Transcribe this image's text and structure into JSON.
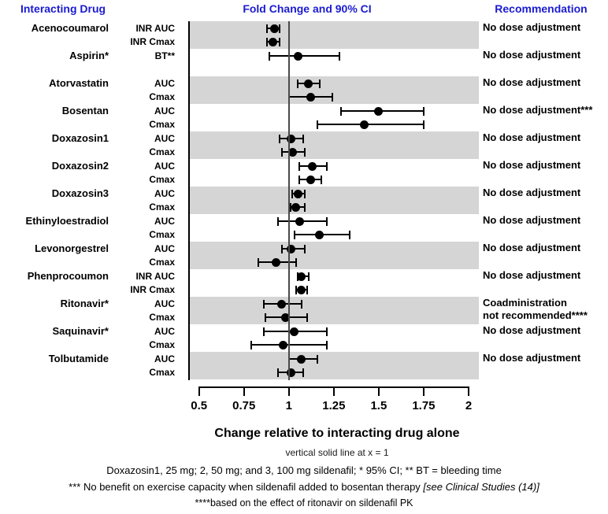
{
  "header": {
    "col_drug": "Interacting Drug",
    "col_plot": "Fold Change and 90% CI",
    "col_rec": "Recommendation"
  },
  "colors": {
    "header_blue": "#1b1bd1",
    "band_gray": "#d5d5d5",
    "marker_black": "#000000",
    "reference_line": "#4a4a4a"
  },
  "chart_data": {
    "type": "forest",
    "title": "Fold Change and 90% CI",
    "xlabel": "Change relative to interacting drug alone",
    "reference_line_note": "vertical solid line at x = 1",
    "xlim": [
      0.5,
      2
    ],
    "x_ticks": [
      0.5,
      0.75,
      1,
      1.25,
      1.5,
      1.75,
      2
    ],
    "x_tick_labels": [
      "0.5",
      "0.75",
      "1",
      "1.25",
      "1.5",
      "1.75",
      "2"
    ],
    "reference_line_x": 1,
    "grid": false,
    "groups": [
      {
        "drug": "Acenocoumarol",
        "rec_lines": [
          "No dose adjustment"
        ],
        "rows": [
          {
            "param": "INR AUC",
            "value": 0.92,
            "ci_low": 0.88,
            "ci_high": 0.95
          },
          {
            "param": "INR Cmax",
            "value": 0.91,
            "ci_low": 0.88,
            "ci_high": 0.95
          }
        ]
      },
      {
        "drug": "Aspirin*",
        "rec_lines": [
          "No dose adjustment"
        ],
        "rows": [
          {
            "param": "BT**",
            "value": 1.05,
            "ci_low": 0.89,
            "ci_high": 1.28
          }
        ]
      },
      {
        "drug": "Atorvastatin",
        "rec_lines": [
          "No dose adjustment"
        ],
        "rows": [
          {
            "param": "AUC",
            "value": 1.11,
            "ci_low": 1.05,
            "ci_high": 1.17
          },
          {
            "param": "Cmax",
            "value": 1.12,
            "ci_low": 1.0,
            "ci_high": 1.24
          }
        ]
      },
      {
        "drug": "Bosentan",
        "rec_lines": [
          "No dose adjustment***"
        ],
        "rows": [
          {
            "param": "AUC",
            "value": 1.5,
            "ci_low": 1.29,
            "ci_high": 1.75
          },
          {
            "param": "Cmax",
            "value": 1.42,
            "ci_low": 1.16,
            "ci_high": 1.75
          }
        ]
      },
      {
        "drug": "Doxazosin1",
        "rec_lines": [
          "No dose adjustment"
        ],
        "rows": [
          {
            "param": "AUC",
            "value": 1.01,
            "ci_low": 0.95,
            "ci_high": 1.08
          },
          {
            "param": "Cmax",
            "value": 1.02,
            "ci_low": 0.96,
            "ci_high": 1.09
          }
        ]
      },
      {
        "drug": "Doxazosin2",
        "rec_lines": [
          "No dose adjustment"
        ],
        "rows": [
          {
            "param": "AUC",
            "value": 1.13,
            "ci_low": 1.06,
            "ci_high": 1.21
          },
          {
            "param": "Cmax",
            "value": 1.12,
            "ci_low": 1.06,
            "ci_high": 1.18
          }
        ]
      },
      {
        "drug": "Doxazosin3",
        "rec_lines": [
          "No dose adjustment"
        ],
        "rows": [
          {
            "param": "AUC",
            "value": 1.05,
            "ci_low": 1.02,
            "ci_high": 1.09
          },
          {
            "param": "Cmax",
            "value": 1.04,
            "ci_low": 1.01,
            "ci_high": 1.09
          }
        ]
      },
      {
        "drug": "Ethinyloestradiol",
        "rec_lines": [
          "No dose adjustment"
        ],
        "rows": [
          {
            "param": "AUC",
            "value": 1.06,
            "ci_low": 0.94,
            "ci_high": 1.21
          },
          {
            "param": "Cmax",
            "value": 1.17,
            "ci_low": 1.03,
            "ci_high": 1.34
          }
        ]
      },
      {
        "drug": "Levonorgestrel",
        "rec_lines": [
          "No dose adjustment"
        ],
        "rows": [
          {
            "param": "AUC",
            "value": 1.01,
            "ci_low": 0.96,
            "ci_high": 1.09
          },
          {
            "param": "Cmax",
            "value": 0.93,
            "ci_low": 0.83,
            "ci_high": 1.04
          }
        ]
      },
      {
        "drug": "Phenprocoumon",
        "rec_lines": [
          "No dose adjustment"
        ],
        "rows": [
          {
            "param": "INR AUC",
            "value": 1.07,
            "ci_low": 1.05,
            "ci_high": 1.11
          },
          {
            "param": "INR Cmax",
            "value": 1.07,
            "ci_low": 1.04,
            "ci_high": 1.1
          }
        ]
      },
      {
        "drug": "Ritonavir*",
        "rec_lines": [
          "Coadministration",
          "not recommended****"
        ],
        "rows": [
          {
            "param": "AUC",
            "value": 0.96,
            "ci_low": 0.86,
            "ci_high": 1.07
          },
          {
            "param": "Cmax",
            "value": 0.98,
            "ci_low": 0.87,
            "ci_high": 1.1
          }
        ]
      },
      {
        "drug": "Saquinavir*",
        "rec_lines": [
          "No dose adjustment"
        ],
        "rows": [
          {
            "param": "AUC",
            "value": 1.03,
            "ci_low": 0.86,
            "ci_high": 1.21
          },
          {
            "param": "Cmax",
            "value": 0.97,
            "ci_low": 0.79,
            "ci_high": 1.21
          }
        ]
      },
      {
        "drug": "Tolbutamide",
        "rec_lines": [
          "No dose adjustment"
        ],
        "rows": [
          {
            "param": "AUC",
            "value": 1.07,
            "ci_low": 1.0,
            "ci_high": 1.16
          },
          {
            "param": "Cmax",
            "value": 1.01,
            "ci_low": 0.94,
            "ci_high": 1.08
          }
        ]
      }
    ]
  },
  "axis": {
    "title": "Change relative to interacting drug alone",
    "note": "vertical solid line at x = 1"
  },
  "footnotes": {
    "line1": "Doxazosin1, 25 mg; 2, 50 mg; and 3, 100 mg sildenafil; * 95% CI; ** BT = bleeding time",
    "line2_main": "*** No benefit on exercise capacity when sildenafil added to bosentan therapy ",
    "line2_italic": "[see Clinical Studies (14)]",
    "line3": "****based on the effect of ritonavir on sildenafil PK"
  }
}
